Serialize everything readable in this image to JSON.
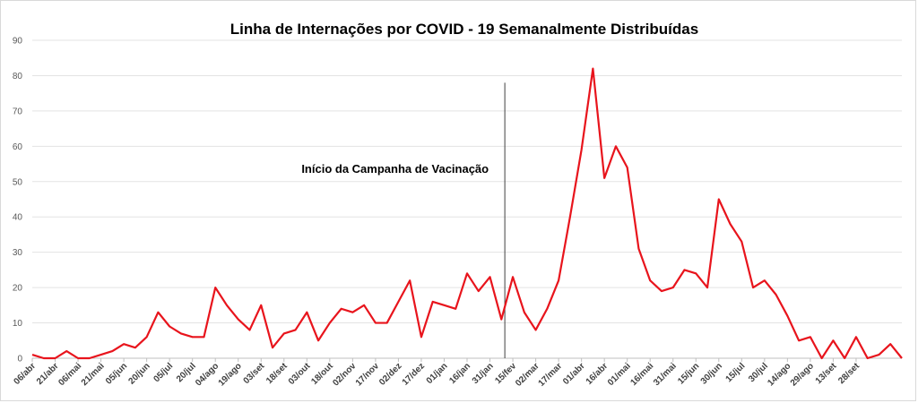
{
  "chart_data": {
    "type": "line",
    "title": "Linha de Internações por COVID - 19 Semanalmente Distribuídas",
    "xlabel": "",
    "ylabel": "",
    "ylim": [
      0,
      90
    ],
    "yticks": [
      "0",
      "10",
      "20",
      "30",
      "40",
      "50",
      "60",
      "70",
      "80",
      "90"
    ],
    "grid": true,
    "line_color": "#e8141c",
    "x_tick_labels": [
      "06/abr",
      "21/abr",
      "06/mai",
      "21/mai",
      "05/jun",
      "20/jun",
      "05/jul",
      "20/jul",
      "04/ago",
      "19/ago",
      "03/set",
      "18/set",
      "03/out",
      "18/out",
      "02/nov",
      "17/nov",
      "02/dez",
      "17/dez",
      "01/jan",
      "16/jan",
      "31/jan",
      "15/fev",
      "02/mar",
      "17/mar",
      "01/abr",
      "16/abr",
      "01/mai",
      "16/mai",
      "31/mai",
      "15/jun",
      "30/jun",
      "15/jul",
      "30/jul",
      "14/ago",
      "29/ago",
      "13/set",
      "28/set"
    ],
    "series": [
      {
        "values": [
          1,
          0,
          0,
          2,
          0,
          0,
          1,
          2,
          4,
          3,
          6,
          13,
          9,
          7,
          6,
          6,
          20,
          15,
          11,
          8,
          15,
          3,
          7,
          8,
          13,
          5,
          10,
          14,
          13,
          15,
          10,
          10,
          16,
          22,
          6,
          16,
          15,
          14,
          24,
          19,
          23,
          11,
          23,
          13,
          8,
          14,
          22,
          40,
          59,
          82,
          51,
          60,
          54,
          31,
          22,
          19,
          20,
          25,
          24,
          20,
          45,
          38,
          33,
          20,
          22,
          18,
          12,
          5,
          6,
          0,
          5,
          0,
          6,
          0,
          1,
          4,
          0
        ]
      }
    ],
    "vertical_marker_index": 41,
    "annotation": "Início da Campanha  de Vacinação"
  }
}
